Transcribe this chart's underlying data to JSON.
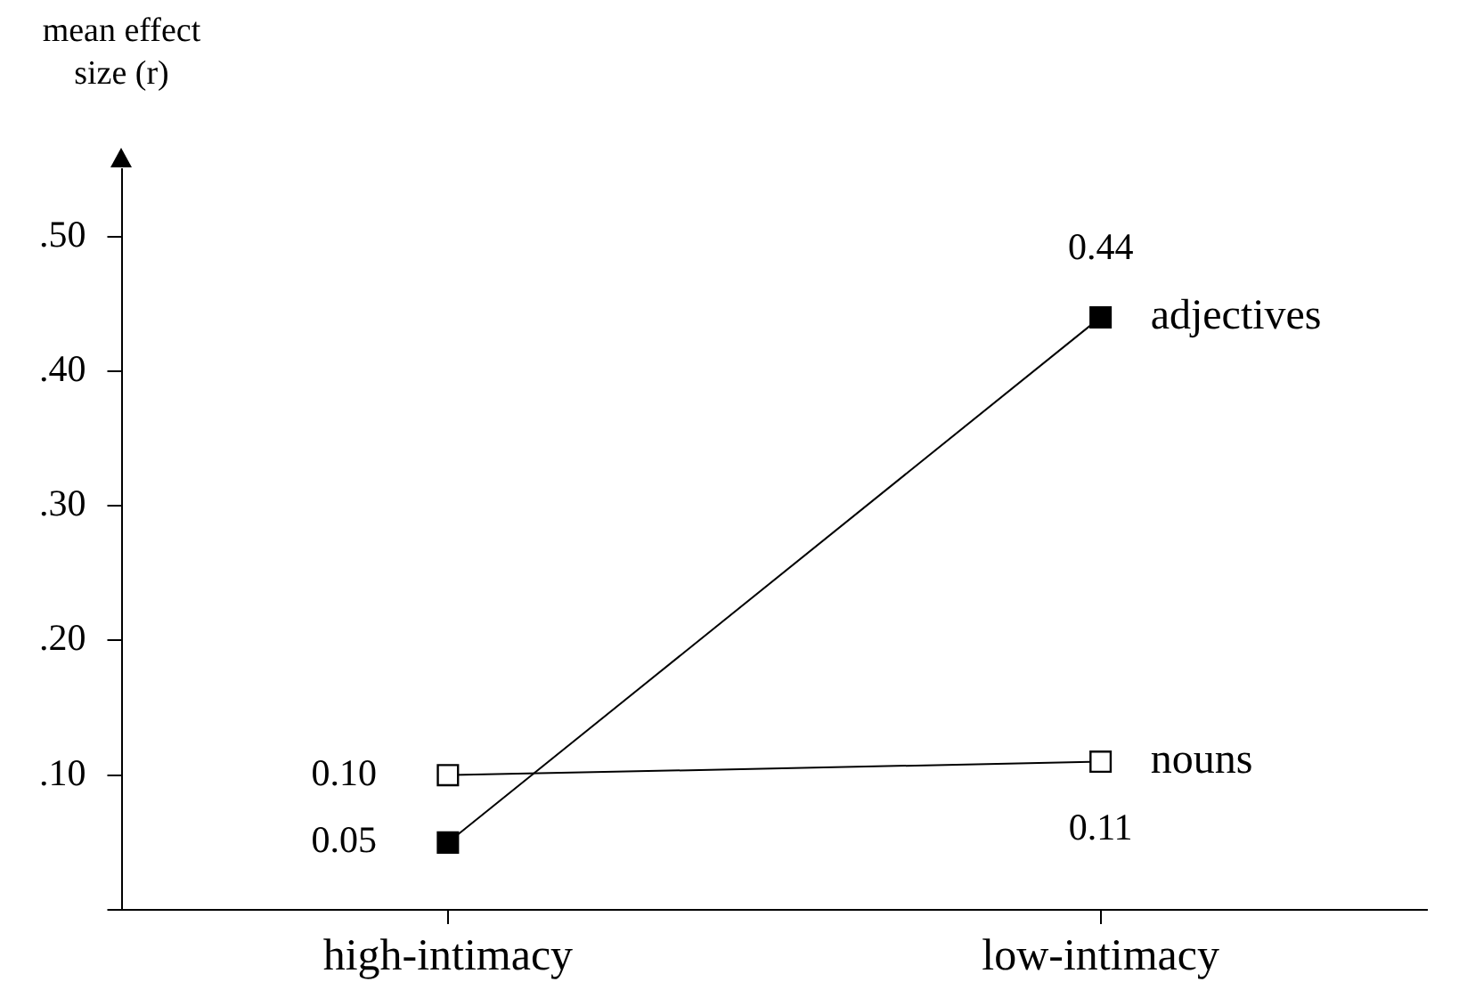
{
  "chart_data": {
    "type": "line",
    "ylabel": "mean effect size (r)",
    "categories": [
      "high-intimacy",
      "low-intimacy"
    ],
    "series": [
      {
        "name": "adjectives",
        "color": "#000000",
        "values": [
          0.05,
          0.44
        ],
        "value_labels": [
          "0.05",
          "0.44"
        ]
      },
      {
        "name": "nouns",
        "color": "#ffffff",
        "values": [
          0.1,
          0.11
        ],
        "value_labels": [
          "0.10",
          "0.11"
        ]
      }
    ],
    "ylim": [
      0,
      0.55
    ],
    "yticks": [
      {
        "value": 0,
        "label": null
      },
      {
        "value": 0.1,
        "label": ".10"
      },
      {
        "value": 0.2,
        "label": ".20"
      },
      {
        "value": 0.3,
        "label": ".30"
      },
      {
        "value": 0.4,
        "label": ".40"
      },
      {
        "value": 0.5,
        "label": ".50"
      }
    ],
    "marker": "square",
    "line_style": "solid",
    "grid": false,
    "legend": false
  }
}
